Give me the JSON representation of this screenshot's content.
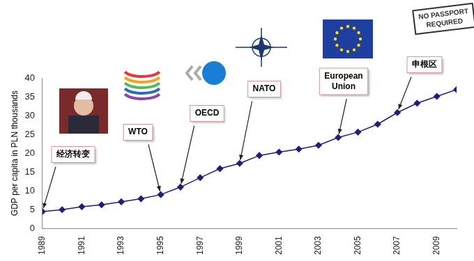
{
  "chart_data": {
    "type": "line",
    "ylabel": "GDP per capita in PLN thousands",
    "categories": [
      "1989",
      null,
      "1991",
      null,
      "1993",
      null,
      "1995",
      null,
      "1997",
      null,
      "1999",
      null,
      "2001",
      null,
      "2003",
      null,
      "2005",
      null,
      "2007",
      null,
      "2009",
      null
    ],
    "values": [
      4.5,
      5.0,
      5.8,
      6.3,
      7.1,
      7.9,
      9.0,
      11.0,
      13.5,
      15.9,
      17.3,
      19.4,
      20.3,
      21.1,
      22.1,
      24.2,
      25.6,
      27.7,
      30.8,
      33.3,
      35.1,
      36.9
    ],
    "color": "#1f1f7a",
    "marker": "diamond",
    "ylim": [
      0,
      40
    ],
    "yticks": [
      0,
      5,
      10,
      15,
      20,
      25,
      30,
      35,
      40
    ],
    "grid": false,
    "annotations": [
      {
        "text": "经济转变",
        "year": 1989
      },
      {
        "text": "WTO",
        "year": 1995
      },
      {
        "text": "OECD",
        "year": 1996
      },
      {
        "text": "NATO",
        "year": 1999
      },
      {
        "text": "European Union",
        "year": 2004
      },
      {
        "text": "申根区",
        "year": 2007
      },
      {
        "text": "NO PASSPORT REQUIRED"
      }
    ]
  }
}
